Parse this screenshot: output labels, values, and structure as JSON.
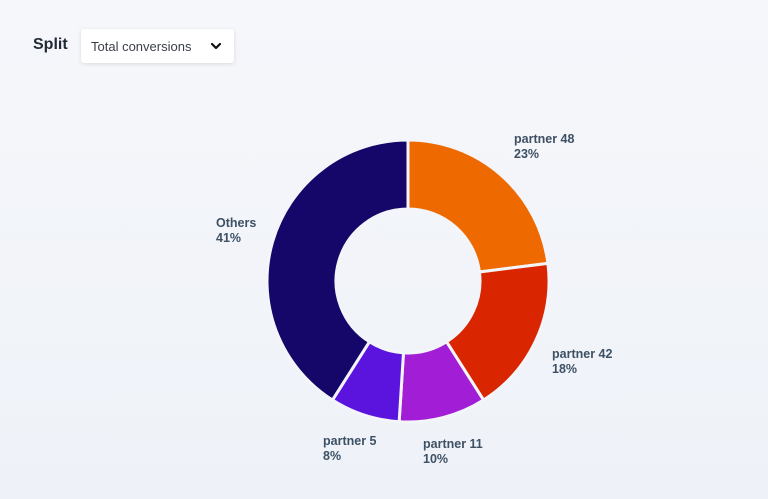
{
  "header": {
    "split_label": "Split",
    "dropdown": {
      "selected": "Total conversions"
    }
  },
  "chart_data": {
    "type": "pie",
    "variant": "donut",
    "slices": [
      {
        "label": "partner 48",
        "value": 23,
        "display": "23%",
        "color": "#ee6a00"
      },
      {
        "label": "partner 42",
        "value": 18,
        "display": "18%",
        "color": "#d92600"
      },
      {
        "label": "partner 11",
        "value": 10,
        "display": "10%",
        "color": "#a21ed6"
      },
      {
        "label": "partner 5",
        "value": 8,
        "display": "8%",
        "color": "#5a14de"
      },
      {
        "label": "Others",
        "value": 41,
        "display": "41%",
        "color": "#15066a"
      }
    ]
  }
}
